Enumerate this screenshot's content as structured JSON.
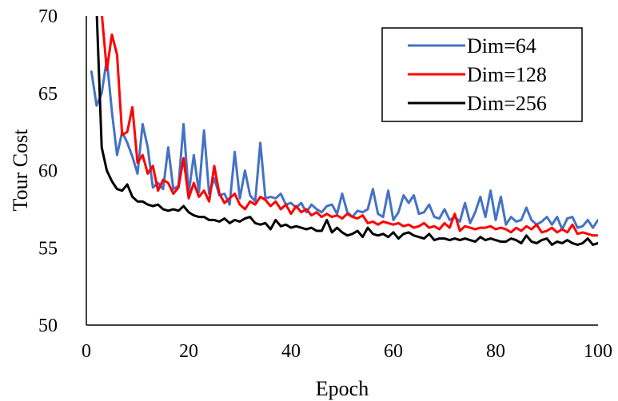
{
  "chart_data": {
    "type": "line",
    "xlabel": "Epoch",
    "ylabel": "Tour Cost",
    "xlim": [
      0,
      100
    ],
    "ylim": [
      50,
      70
    ],
    "xticks": [
      0,
      20,
      40,
      60,
      80,
      100
    ],
    "yticks": [
      50,
      55,
      60,
      65,
      70
    ],
    "grid": false,
    "legend_position": "top-right",
    "series": [
      {
        "name": "Dim=64",
        "color": "#4472C4",
        "x": [
          1,
          2,
          3,
          4,
          5,
          6,
          7,
          8,
          9,
          10,
          11,
          12,
          13,
          14,
          15,
          16,
          17,
          18,
          19,
          20,
          21,
          22,
          23,
          24,
          25,
          26,
          27,
          28,
          29,
          30,
          31,
          32,
          33,
          34,
          35,
          36,
          37,
          38,
          39,
          40,
          41,
          42,
          43,
          44,
          45,
          46,
          47,
          48,
          49,
          50,
          51,
          52,
          53,
          54,
          55,
          56,
          57,
          58,
          59,
          60,
          61,
          62,
          63,
          64,
          65,
          66,
          67,
          68,
          69,
          70,
          71,
          72,
          73,
          74,
          75,
          76,
          77,
          78,
          79,
          80,
          81,
          82,
          83,
          84,
          85,
          86,
          87,
          88,
          89,
          90,
          91,
          92,
          93,
          94,
          95,
          96,
          97,
          98,
          99,
          100
        ],
        "y": [
          66.4,
          64.2,
          65.0,
          67.2,
          63.8,
          61.0,
          62.5,
          61.8,
          60.9,
          59.8,
          63.0,
          61.5,
          58.9,
          59.2,
          58.8,
          61.5,
          58.8,
          59.0,
          63.0,
          58.5,
          61.0,
          58.6,
          62.6,
          58.5,
          59.5,
          58.4,
          58.5,
          57.8,
          61.2,
          58.2,
          60.0,
          58.4,
          58.0,
          61.8,
          58.2,
          58.3,
          58.2,
          58.5,
          57.8,
          57.9,
          57.6,
          57.9,
          57.3,
          57.8,
          57.5,
          57.3,
          57.7,
          57.8,
          57.2,
          58.5,
          57.3,
          57.0,
          57.4,
          57.3,
          57.5,
          58.8,
          57.2,
          57.0,
          58.7,
          56.8,
          57.3,
          58.4,
          57.9,
          58.4,
          57.2,
          57.3,
          57.8,
          57.0,
          56.9,
          57.5,
          56.8,
          57.0,
          56.7,
          57.9,
          56.6,
          57.3,
          58.3,
          57.0,
          58.7,
          56.8,
          58.3,
          56.5,
          57.0,
          56.7,
          56.8,
          57.6,
          56.8,
          56.5,
          56.7,
          57.0,
          56.5,
          57.0,
          56.2,
          56.9,
          57.0,
          56.3,
          56.4,
          56.8,
          56.3,
          56.8
        ]
      },
      {
        "name": "Dim=128",
        "color": "#FF0000",
        "x": [
          2,
          3,
          4,
          5,
          6,
          7,
          8,
          9,
          10,
          11,
          12,
          13,
          14,
          15,
          16,
          17,
          18,
          19,
          20,
          21,
          22,
          23,
          24,
          25,
          26,
          27,
          28,
          29,
          30,
          31,
          32,
          33,
          34,
          35,
          36,
          37,
          38,
          39,
          40,
          41,
          42,
          43,
          44,
          45,
          46,
          47,
          48,
          49,
          50,
          51,
          52,
          53,
          54,
          55,
          56,
          57,
          58,
          59,
          60,
          61,
          62,
          63,
          64,
          65,
          66,
          67,
          68,
          69,
          70,
          71,
          72,
          73,
          74,
          75,
          76,
          77,
          78,
          79,
          80,
          81,
          82,
          83,
          84,
          85,
          86,
          87,
          88,
          89,
          90,
          91,
          92,
          93,
          94,
          95,
          96,
          97,
          98,
          99,
          100
        ],
        "y": [
          71.5,
          70.2,
          66.5,
          68.8,
          67.5,
          62.3,
          62.5,
          64.1,
          60.5,
          61.0,
          59.8,
          60.3,
          58.7,
          59.4,
          59.2,
          58.5,
          58.9,
          60.8,
          58.2,
          59.2,
          58.3,
          58.7,
          58.0,
          60.3,
          58.5,
          57.9,
          58.2,
          58.5,
          57.8,
          57.5,
          58.0,
          57.8,
          58.3,
          58.1,
          57.7,
          58.0,
          57.5,
          57.8,
          57.2,
          57.7,
          57.3,
          57.5,
          57.1,
          57.3,
          57.0,
          57.2,
          57.0,
          57.1,
          56.9,
          57.2,
          57.0,
          56.9,
          57.1,
          56.6,
          56.7,
          56.5,
          56.7,
          56.6,
          56.5,
          56.6,
          56.4,
          56.5,
          56.3,
          56.4,
          56.6,
          56.3,
          56.4,
          56.2,
          56.6,
          56.3,
          57.2,
          56.1,
          56.4,
          56.3,
          56.2,
          56.3,
          56.3,
          56.4,
          56.2,
          56.3,
          56.2,
          56.0,
          56.3,
          56.1,
          56.4,
          56.2,
          56.5,
          56.0,
          56.1,
          56.3,
          56.0,
          56.2,
          56.0,
          56.5,
          55.9,
          56.0,
          55.9,
          55.8,
          55.8
        ]
      },
      {
        "name": "Dim=256",
        "color": "#000000",
        "x": [
          2,
          3,
          4,
          5,
          6,
          7,
          8,
          9,
          10,
          11,
          12,
          13,
          14,
          15,
          16,
          17,
          18,
          19,
          20,
          21,
          22,
          23,
          24,
          25,
          26,
          27,
          28,
          29,
          30,
          31,
          32,
          33,
          34,
          35,
          36,
          37,
          38,
          39,
          40,
          41,
          42,
          43,
          44,
          45,
          46,
          47,
          48,
          49,
          50,
          51,
          52,
          53,
          54,
          55,
          56,
          57,
          58,
          59,
          60,
          61,
          62,
          63,
          64,
          65,
          66,
          67,
          68,
          69,
          70,
          71,
          72,
          73,
          74,
          75,
          76,
          77,
          78,
          79,
          80,
          81,
          82,
          83,
          84,
          85,
          86,
          87,
          88,
          89,
          90,
          91,
          92,
          93,
          94,
          95,
          96,
          97,
          98,
          99,
          100
        ],
        "y": [
          70.5,
          61.5,
          60.0,
          59.3,
          58.8,
          58.7,
          59.1,
          58.3,
          58.0,
          58.0,
          57.8,
          57.7,
          57.8,
          57.5,
          57.4,
          57.5,
          57.4,
          57.7,
          57.3,
          57.1,
          57.0,
          57.0,
          56.8,
          56.8,
          56.7,
          56.9,
          56.6,
          56.8,
          56.7,
          56.9,
          57.0,
          56.6,
          56.5,
          56.6,
          56.2,
          56.8,
          56.4,
          56.5,
          56.3,
          56.4,
          56.3,
          56.2,
          56.3,
          56.1,
          56.1,
          56.8,
          56.0,
          56.3,
          56.0,
          55.8,
          55.9,
          56.1,
          55.7,
          56.3,
          55.9,
          55.8,
          55.9,
          55.7,
          56.0,
          55.6,
          55.9,
          56.0,
          55.8,
          55.7,
          55.6,
          55.9,
          55.5,
          55.6,
          55.6,
          55.5,
          55.6,
          55.5,
          55.6,
          55.5,
          55.4,
          55.7,
          55.5,
          55.6,
          55.5,
          55.4,
          55.4,
          55.6,
          55.5,
          55.3,
          55.8,
          55.4,
          55.3,
          55.5,
          55.6,
          55.2,
          55.4,
          55.3,
          55.5,
          55.3,
          55.2,
          55.3,
          55.6,
          55.2,
          55.3
        ]
      }
    ]
  }
}
